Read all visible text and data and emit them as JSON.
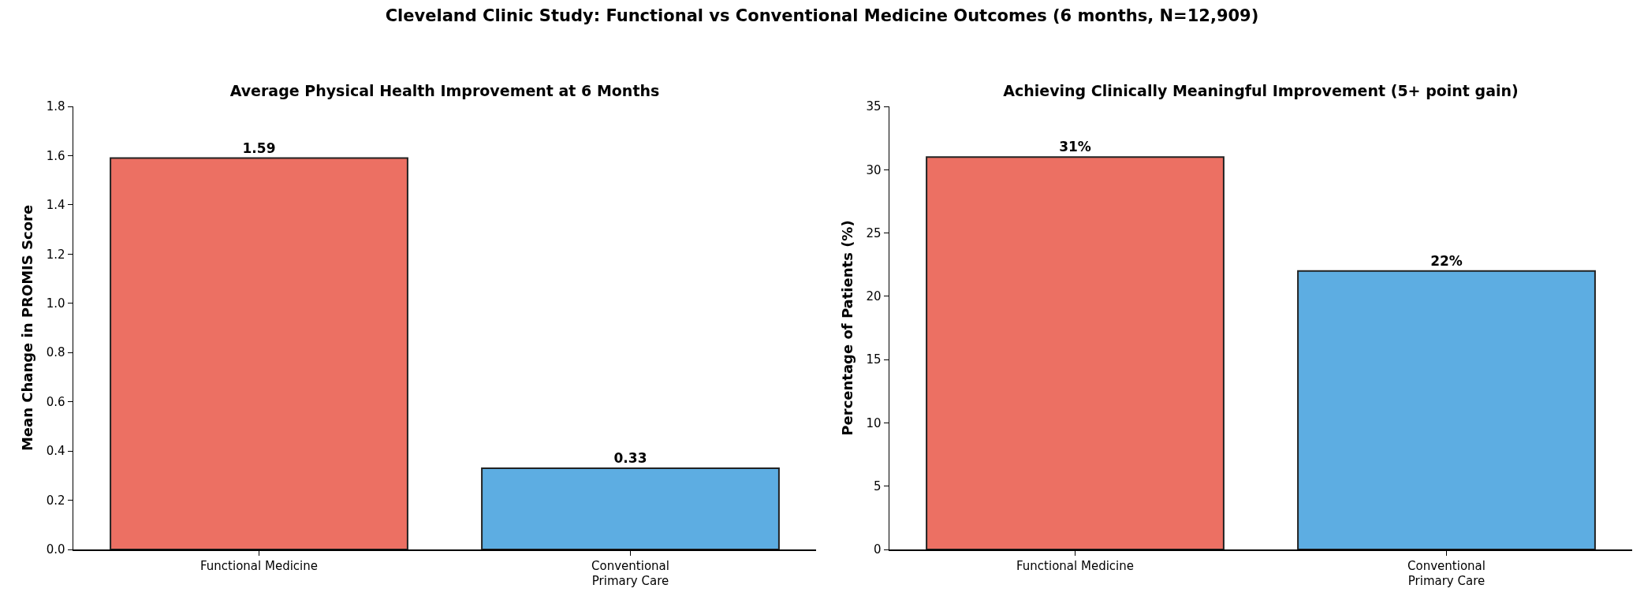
{
  "chart_data": [
    {
      "type": "bar",
      "title": "Cleveland Clinic Study: Functional vs Conventional Medicine Outcomes (6 months, N=12,909)",
      "subtitle": "Average Physical Health Improvement at 6 Months",
      "ylabel": "Mean Change in PROMIS Score",
      "categories": [
        "Functional Medicine",
        "Conventional\nPrimary Care"
      ],
      "values": [
        1.59,
        0.33
      ],
      "colors": [
        "#ec7063",
        "#5dade2"
      ],
      "value_labels": [
        "1.59",
        "0.33"
      ],
      "ylim": [
        0,
        1.8
      ],
      "yticks": [
        {
          "value": 0,
          "label": "0.0"
        },
        0.2,
        0.4,
        0.6,
        0.8,
        {
          "value": 1,
          "label": "1.0"
        },
        1.2,
        1.4,
        1.6,
        1.8
      ],
      "grid": false
    },
    {
      "type": "bar",
      "title": "Achieving Clinically Meaningful Improvement (5+ point gain)",
      "ylabel": "Percentage of Patients (%)",
      "categories": [
        "Functional Medicine",
        "Conventional\nPrimary Care"
      ],
      "values": [
        31,
        22
      ],
      "colors": [
        "#ec7063",
        "#5dade2"
      ],
      "value_labels": [
        "31%",
        "22%"
      ],
      "ylim": [
        0,
        35
      ],
      "yticks": [
        0,
        5,
        10,
        15,
        20,
        25,
        30,
        35
      ],
      "grid": false
    }
  ]
}
